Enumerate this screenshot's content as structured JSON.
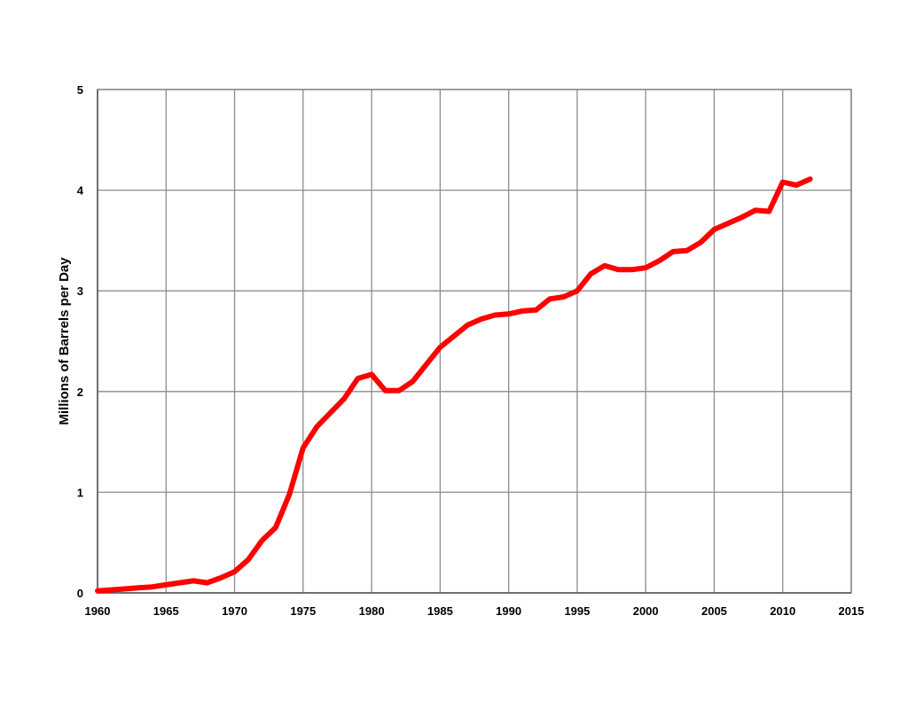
{
  "chart_data": {
    "type": "line",
    "ylabel": "Millions of Barrels per Day",
    "xlabel": "",
    "xlim": [
      1960,
      2015
    ],
    "ylim": [
      0,
      5
    ],
    "x_ticks": [
      1960,
      1965,
      1970,
      1975,
      1980,
      1985,
      1990,
      1995,
      2000,
      2005,
      2010,
      2015
    ],
    "y_ticks": [
      0,
      1,
      2,
      3,
      4,
      5
    ],
    "grid": true,
    "series": [
      {
        "color": "#ff0000",
        "x": [
          1960,
          1961,
          1962,
          1963,
          1964,
          1965,
          1966,
          1967,
          1968,
          1969,
          1970,
          1971,
          1972,
          1973,
          1974,
          1975,
          1976,
          1977,
          1978,
          1979,
          1980,
          1981,
          1982,
          1983,
          1984,
          1985,
          1986,
          1987,
          1988,
          1989,
          1990,
          1991,
          1992,
          1993,
          1994,
          1995,
          1996,
          1997,
          1998,
          1999,
          2000,
          2001,
          2002,
          2003,
          2004,
          2005,
          2006,
          2007,
          2008,
          2009,
          2010,
          2011,
          2012
        ],
        "values": [
          0.02,
          0.03,
          0.04,
          0.05,
          0.06,
          0.08,
          0.1,
          0.12,
          0.1,
          0.15,
          0.21,
          0.33,
          0.52,
          0.65,
          0.98,
          1.44,
          1.65,
          1.79,
          1.93,
          2.13,
          2.17,
          2.01,
          2.01,
          2.1,
          2.27,
          2.44,
          2.55,
          2.66,
          2.72,
          2.76,
          2.77,
          2.8,
          2.81,
          2.92,
          2.94,
          3.0,
          3.17,
          3.25,
          3.21,
          3.21,
          3.23,
          3.3,
          3.39,
          3.4,
          3.48,
          3.61,
          3.67,
          3.73,
          3.8,
          3.79,
          4.08,
          4.05,
          4.11
        ]
      }
    ]
  }
}
